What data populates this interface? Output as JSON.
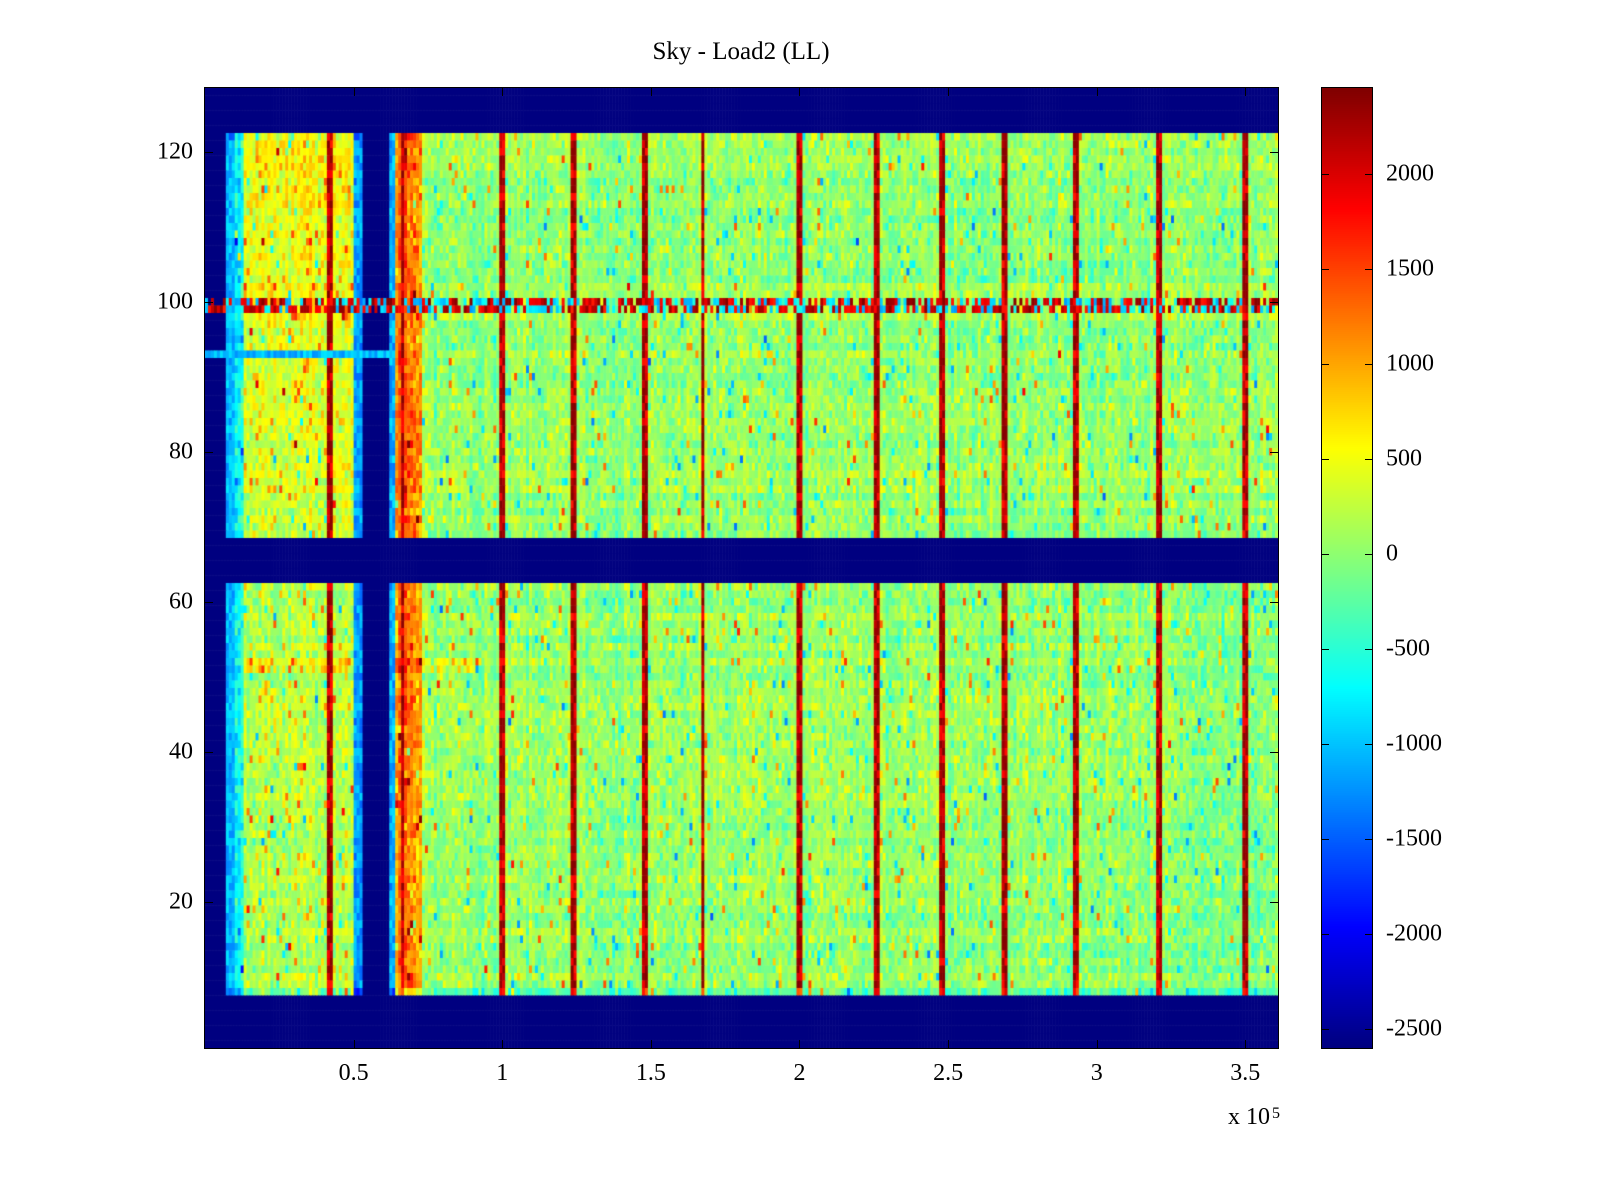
{
  "title": "Sky - Load2 (LL)",
  "axes": {
    "x": {
      "tick_labels": [
        "0.5",
        "1",
        "1.5",
        "2",
        "2.5",
        "3",
        "3.5"
      ],
      "tick_values": [
        0.5,
        1,
        1.5,
        2,
        2.5,
        3,
        3.5
      ],
      "exponent_label": "x 10",
      "exponent": "5"
    },
    "y": {
      "tick_labels": [
        "20",
        "40",
        "60",
        "80",
        "100",
        "120"
      ],
      "tick_values": [
        20,
        40,
        60,
        80,
        100,
        120
      ]
    }
  },
  "colorbar": {
    "tick_labels": [
      "2000",
      "1500",
      "1000",
      "500",
      "0",
      "-500",
      "-1000",
      "-1500",
      "-2000",
      "-2500"
    ],
    "tick_values": [
      2000,
      1500,
      1000,
      500,
      0,
      -500,
      -1000,
      -1500,
      -2000,
      -2500
    ],
    "colormap": "jet",
    "min_color": "#000080",
    "max_color": "#800000"
  },
  "chart_data": {
    "type": "heatmap",
    "title": "Sky - Load2 (LL)",
    "x_range_e5": [
      0,
      3.61
    ],
    "x_unit_multiplier": 100000,
    "y_range": [
      0.5,
      128.5
    ],
    "color_axis": [
      -2600,
      2450
    ],
    "colormap": "jet",
    "grid": {
      "cols": 361,
      "rows": 128
    },
    "masked_value": -2600,
    "background": {
      "mean": 30,
      "noise_sd": 380,
      "description": "speckled green/yellow noise field with cyan and orange flecks"
    },
    "features": {
      "masked_row_bands": [
        [
          123,
          128
        ],
        [
          63,
          68
        ],
        [
          1,
          7
        ]
      ],
      "masked_col_bands_e5": [
        [
          0,
          0.07
        ],
        [
          0.53,
          0.625
        ]
      ],
      "hot_stripe_rows": [
        99,
        100
      ],
      "cyan_stripe_row": 93,
      "cyan_stripe_max_x_e5": 0.64,
      "orange_column_e5": [
        0.645,
        0.735
      ],
      "warm_left_region_e5": [
        0.13,
        0.505
      ],
      "warm_row_band": [
        51,
        52
      ],
      "vertical_hot_lines_e5": [
        0.42,
        0.665,
        1.0,
        1.24,
        1.48,
        1.675,
        2.0,
        2.26,
        2.48,
        2.69,
        2.93,
        3.21,
        3.5
      ]
    },
    "seed": 7
  }
}
